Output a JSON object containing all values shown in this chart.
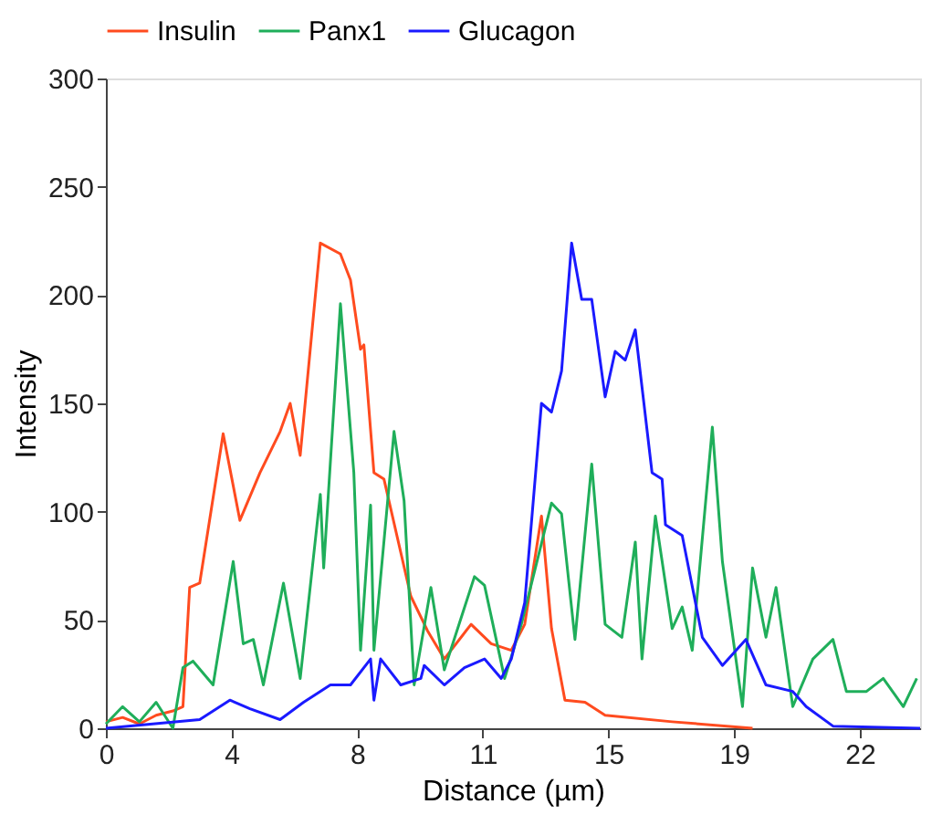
{
  "chart_data": {
    "type": "line",
    "xlabel": "Distance (µm)",
    "ylabel": "Intensity",
    "xlim": [
      0,
      24.3
    ],
    "ylim": [
      0,
      300
    ],
    "xticks": [
      0,
      {
        "value": 3.75,
        "label": "4"
      },
      {
        "value": 7.5,
        "label": "8"
      },
      {
        "value": 11.25,
        "label": "11"
      },
      15,
      {
        "value": 18.75,
        "label": "19"
      },
      {
        "value": 22.5,
        "label": "22"
      }
    ],
    "yticks": [
      0,
      50,
      100,
      150,
      200,
      250,
      300
    ],
    "grid": false,
    "legend": "top",
    "marker": "none",
    "line_style": "solid",
    "series": [
      {
        "name": "Insulin",
        "color": "#ff4b1f",
        "x": [
          0,
          0.5,
          1,
          1.5,
          2,
          2.3,
          2.5,
          2.8,
          3.5,
          4.0,
          4.6,
          5.2,
          5.5,
          5.8,
          6.4,
          7.0,
          7.3,
          7.6,
          7.7,
          8.0,
          8.3,
          9.1,
          9.6,
          10.1,
          10.9,
          11.5,
          12.1,
          12.5,
          13.0,
          13.3,
          13.7,
          14.3,
          14.9,
          16.9,
          19.3
        ],
        "values": [
          3,
          5,
          2,
          6,
          8,
          10,
          65,
          67,
          136,
          96,
          118,
          137,
          150,
          126,
          224,
          219,
          207,
          175,
          177,
          118,
          115,
          61,
          45,
          32,
          48,
          39,
          36,
          48,
          98,
          46,
          13,
          12,
          6,
          3,
          0
        ]
      },
      {
        "name": "Panx1",
        "color": "#1fae5a",
        "x": [
          0,
          0.5,
          1,
          1.5,
          2,
          2.3,
          2.6,
          3.2,
          3.8,
          4.1,
          4.4,
          4.7,
          5.3,
          5.8,
          6.4,
          6.5,
          7.0,
          7.4,
          7.6,
          7.9,
          8.0,
          8.6,
          8.9,
          9.2,
          9.7,
          10.1,
          11.0,
          11.3,
          11.9,
          12.4,
          13.3,
          13.6,
          14.0,
          14.5,
          14.9,
          15.4,
          15.8,
          16.0,
          16.4,
          16.9,
          17.2,
          17.5,
          18.1,
          18.4,
          19.0,
          19.3,
          19.7,
          20.0,
          20.5,
          21.1,
          21.7,
          22.1,
          22.7,
          23.2,
          23.8,
          24.2
        ],
        "values": [
          2,
          10,
          3,
          12,
          0,
          28,
          31,
          20,
          77,
          39,
          41,
          20,
          67,
          23,
          108,
          74,
          196,
          118,
          36,
          103,
          36,
          137,
          105,
          20,
          65,
          27,
          70,
          66,
          23,
          48,
          104,
          99,
          41,
          122,
          48,
          42,
          86,
          32,
          98,
          46,
          56,
          36,
          139,
          77,
          10,
          74,
          42,
          65,
          10,
          32,
          41,
          17,
          17,
          23,
          10,
          23
        ]
      },
      {
        "name": "Glucagon",
        "color": "#1a1aff",
        "x": [
          0,
          2.8,
          3.7,
          4.3,
          5.2,
          5.9,
          6.7,
          7.3,
          7.9,
          8.0,
          8.2,
          8.8,
          9.4,
          9.5,
          10.1,
          10.7,
          11.3,
          11.8,
          12.1,
          12.5,
          13.0,
          13.3,
          13.6,
          13.9,
          14.2,
          14.5,
          14.9,
          15.2,
          15.5,
          15.8,
          16.3,
          16.6,
          16.7,
          17.2,
          17.8,
          18.4,
          19.1,
          19.7,
          20.5,
          20.9,
          21.7,
          24.3
        ],
        "values": [
          0,
          4,
          13,
          9,
          4,
          12,
          20,
          20,
          32,
          13,
          32,
          20,
          23,
          29,
          20,
          28,
          32,
          23,
          32,
          58,
          150,
          146,
          165,
          224,
          198,
          198,
          153,
          174,
          170,
          184,
          118,
          115,
          94,
          89,
          42,
          29,
          41,
          20,
          17,
          10,
          1,
          0
        ]
      }
    ]
  }
}
